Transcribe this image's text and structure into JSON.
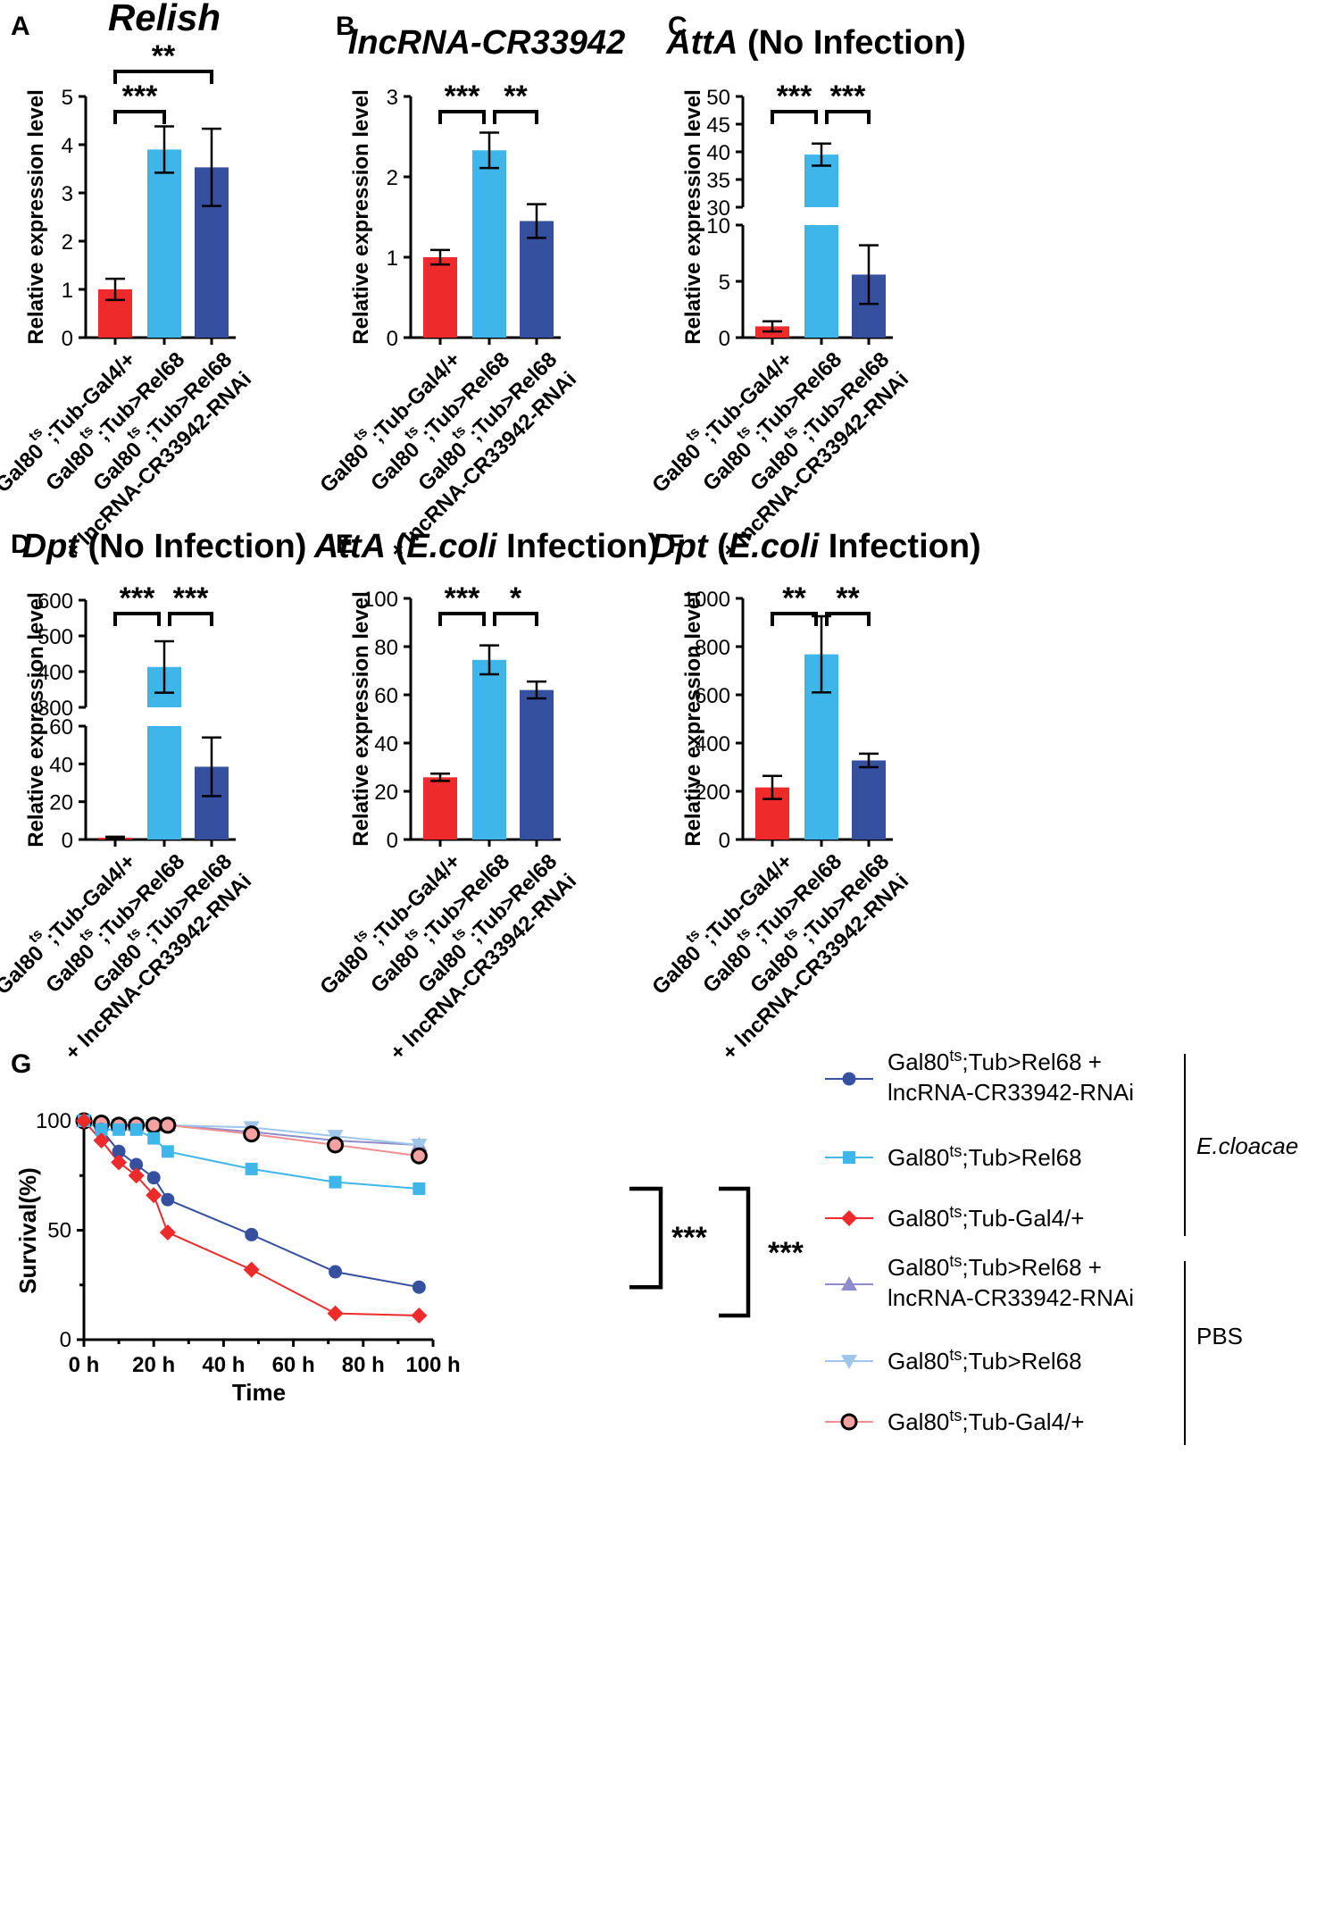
{
  "colors": {
    "red": "#ee2a2b",
    "light_blue": "#3fb6ea",
    "dark_blue": "#3650a0",
    "pbs_purple": "#8f8ccc",
    "pbs_lightblue": "#9ec5ea",
    "pbs_red": "#f08f8f",
    "pbs_red_fill": "#f3a1a1"
  },
  "panel_letters": [
    "A",
    "B",
    "C",
    "D",
    "E",
    "F",
    "G"
  ],
  "ylabel_bar": "Relative expression level",
  "genotype_labels": [
    {
      "pre": "Gal80",
      "sup": "ts",
      "post": ";Tub-Gal4/+",
      "line2": ""
    },
    {
      "pre": "Gal80",
      "sup": "ts",
      "post": ";Tub>Rel68",
      "line2": ""
    },
    {
      "pre": "Gal80",
      "sup": "ts",
      "post": ";Tub>Rel68",
      "line2": "+ lncRNA-CR33942-RNAi"
    }
  ],
  "chart_data": [
    {
      "panel": "A",
      "type": "bar",
      "title_italic": "Relish",
      "title_rest": "",
      "ylabel": "Relative expression level",
      "ylim": [
        0,
        5
      ],
      "yticks": [
        "0",
        "1",
        "2",
        "3",
        "4",
        "5"
      ],
      "categories": [
        "Gal80ts;Tub-Gal4/+",
        "Gal80ts;Tub>Rel68",
        "Gal80ts;Tub>Rel68 + lncRNA-CR33942-RNAi"
      ],
      "values": [
        1.0,
        3.9,
        3.53
      ],
      "errors": [
        0.22,
        0.48,
        0.8
      ],
      "significance": [
        {
          "from": 0,
          "to": 1,
          "label": "***"
        },
        {
          "from": 0,
          "to": 2,
          "label": "**"
        }
      ]
    },
    {
      "panel": "B",
      "type": "bar",
      "title_italic": "lncRNA-CR33942",
      "title_rest": "",
      "ylabel": "Relative expression level",
      "ylim": [
        0,
        3
      ],
      "yticks": [
        "0",
        "1",
        "2",
        "3"
      ],
      "categories": [
        "Gal80ts;Tub-Gal4/+",
        "Gal80ts;Tub>Rel68",
        "Gal80ts;Tub>Rel68 + lncRNA-CR33942-RNAi"
      ],
      "values": [
        1.0,
        2.33,
        1.45
      ],
      "errors": [
        0.09,
        0.22,
        0.21
      ],
      "significance": [
        {
          "from": 0,
          "to": 1,
          "label": "***"
        },
        {
          "from": 1,
          "to": 2,
          "label": "**"
        }
      ]
    },
    {
      "panel": "C",
      "type": "bar",
      "title_italic": "AttA",
      "title_rest": " (No Infection)",
      "ylabel": "Relative expression level",
      "broken_axis": true,
      "lower_range": [
        0,
        10
      ],
      "lower_ticks": [
        "0",
        "5",
        "10"
      ],
      "upper_range": [
        30,
        50
      ],
      "upper_ticks": [
        "30",
        "35",
        "40",
        "45",
        "50"
      ],
      "categories": [
        "Gal80ts;Tub-Gal4/+",
        "Gal80ts;Tub>Rel68",
        "Gal80ts;Tub>Rel68 + lncRNA-CR33942-RNAi"
      ],
      "values": [
        1.0,
        39.5,
        5.6
      ],
      "errors": [
        0.45,
        2.0,
        2.6
      ],
      "significance": [
        {
          "from": 0,
          "to": 1,
          "label": "***"
        },
        {
          "from": 1,
          "to": 2,
          "label": "***"
        }
      ]
    },
    {
      "panel": "D",
      "type": "bar",
      "title_italic": "Dpt",
      "title_rest": " (No Infection)",
      "ylabel": "Relative expression level",
      "broken_axis": true,
      "lower_range": [
        0,
        60
      ],
      "lower_ticks": [
        "0",
        "20",
        "40",
        "60"
      ],
      "upper_range": [
        300,
        600
      ],
      "upper_ticks": [
        "300",
        "400",
        "500",
        "600"
      ],
      "categories": [
        "Gal80ts;Tub-Gal4/+",
        "Gal80ts;Tub>Rel68",
        "Gal80ts;Tub>Rel68 + lncRNA-CR33942-RNAi"
      ],
      "values": [
        1.0,
        413,
        38.5
      ],
      "errors": [
        0.5,
        72,
        15.5
      ],
      "significance": [
        {
          "from": 0,
          "to": 1,
          "label": "***"
        },
        {
          "from": 1,
          "to": 2,
          "label": "***"
        }
      ]
    },
    {
      "panel": "E",
      "type": "bar",
      "title_italic": "AttA",
      "title_rest": " (",
      "title_italic2": "E.coli",
      "title_rest2": " Infection)",
      "ylabel": "Relative expression level",
      "ylim": [
        0,
        100
      ],
      "yticks": [
        "0",
        "20",
        "40",
        "60",
        "80",
        "100"
      ],
      "categories": [
        "Gal80ts;Tub-Gal4/+",
        "Gal80ts;Tub>Rel68",
        "Gal80ts;Tub>Rel68 + lncRNA-CR33942-RNAi"
      ],
      "values": [
        25.8,
        74.5,
        62.0
      ],
      "errors": [
        1.5,
        6.0,
        3.5
      ],
      "significance": [
        {
          "from": 0,
          "to": 1,
          "label": "***"
        },
        {
          "from": 1,
          "to": 2,
          "label": "*"
        }
      ]
    },
    {
      "panel": "F",
      "type": "bar",
      "title_italic": "Dpt",
      "title_rest": " (",
      "title_italic2": "E.coli",
      "title_rest2": " Infection)",
      "ylabel": "Relative expression level",
      "ylim": [
        0,
        1000
      ],
      "yticks": [
        "0",
        "200",
        "400",
        "600",
        "800",
        "1000"
      ],
      "categories": [
        "Gal80ts;Tub-Gal4/+",
        "Gal80ts;Tub>Rel68",
        "Gal80ts;Tub>Rel68 + lncRNA-CR33942-RNAi"
      ],
      "values": [
        216,
        768,
        328
      ],
      "errors": [
        48,
        158,
        28
      ],
      "significance": [
        {
          "from": 0,
          "to": 1,
          "label": "**"
        },
        {
          "from": 1,
          "to": 2,
          "label": "**"
        }
      ]
    },
    {
      "panel": "G",
      "type": "line",
      "xlabel": "Time",
      "ylabel": "Survival(%)",
      "xlim": [
        0,
        100
      ],
      "ylim": [
        0,
        100
      ],
      "xticks": [
        "0 h",
        "20 h",
        "40 h",
        "60 h",
        "80 h",
        "100 h"
      ],
      "yticks": [
        "0",
        "50",
        "100"
      ],
      "groups": [
        {
          "label": "E.cloacae",
          "italic": true
        },
        {
          "label": "PBS",
          "italic": false
        }
      ],
      "significance": [
        "***",
        "***"
      ],
      "series": [
        {
          "name_pre": "Gal80",
          "name_sup": "ts",
          "name_post": ";Tub>Rel68 +",
          "name_line2": "lncRNA-CR33942-RNAi",
          "marker": "circle",
          "color": "#3650a0",
          "fill": "#3650a0",
          "x": [
            0,
            5,
            10,
            15,
            20,
            24,
            48,
            72,
            96
          ],
          "y": [
            100,
            96,
            86,
            80,
            74,
            64,
            48,
            31,
            24
          ]
        },
        {
          "name_pre": "Gal80",
          "name_sup": "ts",
          "name_post": ";Tub>Rel68",
          "name_line2": "",
          "marker": "square",
          "color": "#3fb6ea",
          "fill": "#3fb6ea",
          "x": [
            0,
            5,
            10,
            15,
            20,
            24,
            48,
            72,
            96
          ],
          "y": [
            100,
            96,
            96,
            96,
            92,
            86,
            78,
            72,
            69
          ]
        },
        {
          "name_pre": "Gal80",
          "name_sup": "ts",
          "name_post": ";Tub-Gal4/+",
          "name_line2": "",
          "marker": "diamond",
          "color": "#ee2a2b",
          "fill": "#ee2a2b",
          "x": [
            0,
            5,
            10,
            15,
            20,
            24,
            48,
            72,
            96
          ],
          "y": [
            100,
            91,
            81,
            75,
            66,
            49,
            32,
            12,
            11
          ]
        },
        {
          "name_pre": "Gal80",
          "name_sup": "ts",
          "name_post": ";Tub>Rel68 +",
          "name_line2": "lncRNA-CR33942-RNAi",
          "marker": "triangle-up",
          "color": "#8f8ccc",
          "fill": "#8f8ccc",
          "x": [
            0,
            5,
            10,
            15,
            20,
            24,
            48,
            72,
            96
          ],
          "y": [
            100,
            99,
            98,
            98,
            98,
            98,
            95,
            91,
            89
          ]
        },
        {
          "name_pre": "Gal80",
          "name_sup": "ts",
          "name_post": ";Tub>Rel68",
          "name_line2": "",
          "marker": "triangle-down",
          "color": "#9ec5ea",
          "fill": "#9ec5ea",
          "x": [
            0,
            5,
            10,
            15,
            20,
            24,
            48,
            72,
            96
          ],
          "y": [
            100,
            98,
            98,
            98,
            98,
            98,
            97,
            93,
            89
          ]
        },
        {
          "name_pre": "Gal80",
          "name_sup": "ts",
          "name_post": ";Tub-Gal4/+",
          "name_line2": "",
          "marker": "circle-outline",
          "color": "#f08f8f",
          "fill": "#f3a1a1",
          "x": [
            0,
            5,
            10,
            15,
            20,
            24,
            48,
            72,
            96
          ],
          "y": [
            100,
            99,
            98,
            98,
            98,
            98,
            94,
            89,
            84
          ]
        }
      ]
    }
  ]
}
